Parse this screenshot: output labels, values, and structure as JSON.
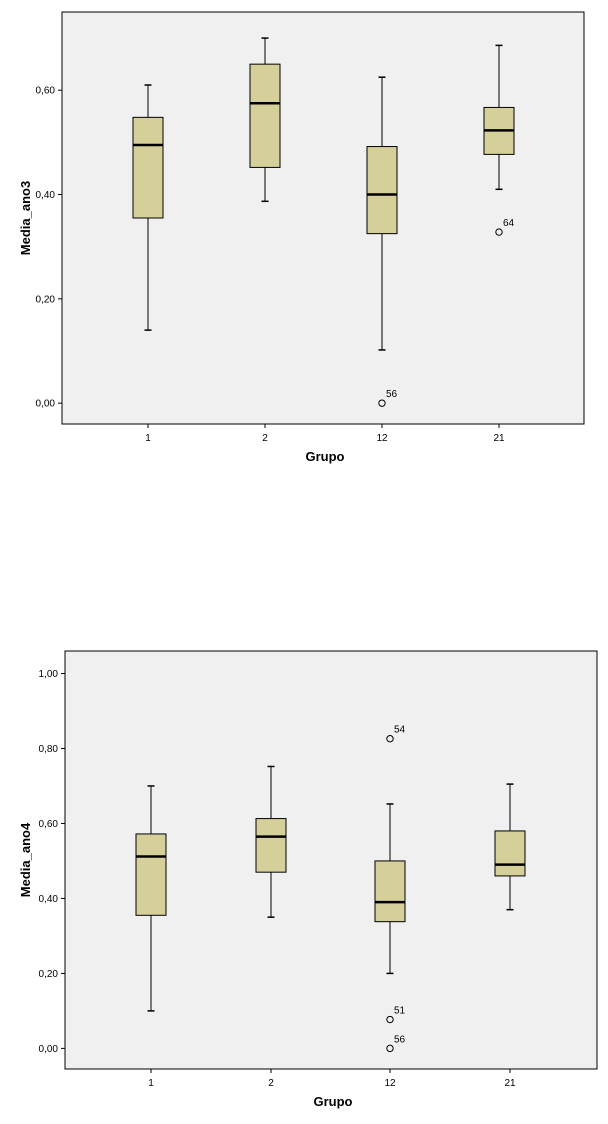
{
  "chart_data": [
    {
      "type": "boxplot",
      "xlabel": "Grupo",
      "ylabel": "Media_ano3",
      "ylim": [
        -0.04,
        0.75
      ],
      "yticks": [
        0.0,
        0.2,
        0.4,
        0.6
      ],
      "ytick_labels": [
        "0,00",
        "0,20",
        "0,40",
        "0,60"
      ],
      "categories": [
        "1",
        "2",
        "12",
        "21"
      ],
      "box_color": "#d5d09a",
      "plot_bg": "#f0f0f0",
      "boxes": [
        {
          "whisker_low": 0.14,
          "q1": 0.355,
          "median": 0.495,
          "q3": 0.548,
          "whisker_high": 0.61,
          "outliers": []
        },
        {
          "whisker_low": 0.387,
          "q1": 0.452,
          "median": 0.575,
          "q3": 0.65,
          "whisker_high": 0.7,
          "outliers": []
        },
        {
          "whisker_low": 0.102,
          "q1": 0.325,
          "median": 0.4,
          "q3": 0.492,
          "whisker_high": 0.625,
          "outliers": [
            {
              "value": 0.0,
              "label": "56"
            }
          ]
        },
        {
          "whisker_low": 0.41,
          "q1": 0.477,
          "median": 0.523,
          "q3": 0.567,
          "whisker_high": 0.686,
          "outliers": [
            {
              "value": 0.328,
              "label": "64"
            }
          ]
        }
      ]
    },
    {
      "type": "boxplot",
      "xlabel": "Grupo",
      "ylabel": "Media_ano4",
      "ylim": [
        -0.055,
        1.06
      ],
      "yticks": [
        0.0,
        0.2,
        0.4,
        0.6,
        0.8,
        1.0
      ],
      "ytick_labels": [
        "0,00",
        "0,20",
        "0,40",
        "0,60",
        "0,80",
        "1,00"
      ],
      "categories": [
        "1",
        "2",
        "12",
        "21"
      ],
      "box_color": "#d5d09a",
      "plot_bg": "#f0f0f0",
      "boxes": [
        {
          "whisker_low": 0.1,
          "q1": 0.355,
          "median": 0.512,
          "q3": 0.572,
          "whisker_high": 0.7,
          "outliers": []
        },
        {
          "whisker_low": 0.35,
          "q1": 0.47,
          "median": 0.565,
          "q3": 0.613,
          "whisker_high": 0.752,
          "outliers": []
        },
        {
          "whisker_low": 0.2,
          "q1": 0.338,
          "median": 0.39,
          "q3": 0.5,
          "whisker_high": 0.652,
          "outliers": [
            {
              "value": 0.826,
              "label": "54"
            },
            {
              "value": 0.077,
              "label": "51"
            },
            {
              "value": 0.0,
              "label": "56"
            }
          ]
        },
        {
          "whisker_low": 0.37,
          "q1": 0.46,
          "median": 0.49,
          "q3": 0.58,
          "whisker_high": 0.705,
          "outliers": []
        }
      ]
    }
  ]
}
